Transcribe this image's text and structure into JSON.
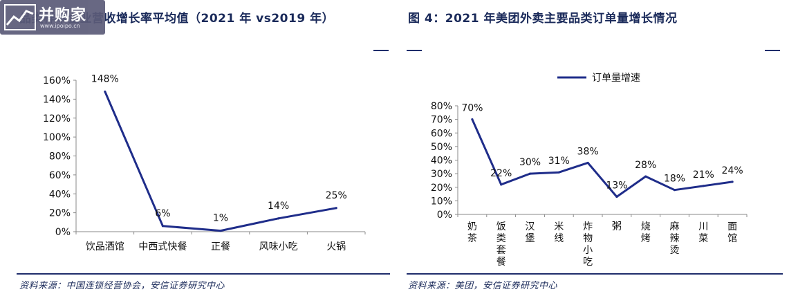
{
  "watermark": {
    "text": "并购家",
    "url": "www.ipoipo.cn"
  },
  "left": {
    "title": "品类样本企业营收增长率平均值（2021 年 vs2019 年）",
    "source": "资料来源：中国连锁经营协会，安信证券研究中心"
  },
  "right": {
    "title": "图 4：2021 年美团外卖主要品类订单量增长情况",
    "source": "资料来源：美团，安信证券研究中心"
  },
  "chart_data": [
    {
      "type": "line",
      "title": "品类样本企业营收增长率平均值（2021 年 vs2019 年）",
      "categories": [
        "饮品酒馆",
        "中西式快餐",
        "正餐",
        "风味小吃",
        "火锅"
      ],
      "series": [
        {
          "values": [
            148,
            6,
            1,
            14,
            25
          ]
        }
      ],
      "data_labels": [
        "148%",
        "6%",
        "1%",
        "14%",
        "25%"
      ],
      "yticks": [
        "0%",
        "20%",
        "40%",
        "60%",
        "80%",
        "100%",
        "120%",
        "140%",
        "160%"
      ],
      "ylim": [
        0,
        160
      ],
      "grid": false,
      "color": "#1f2d8a"
    },
    {
      "type": "line",
      "title": "2021 年美团外卖主要品类订单量增长情况",
      "categories": [
        "奶茶",
        "饭类套餐",
        "汉堡",
        "米线",
        "炸物小吃",
        "粥",
        "烧烤",
        "麻辣烫",
        "川菜",
        "面馆"
      ],
      "series": [
        {
          "name": "订单量增速",
          "values": [
            70,
            22,
            30,
            31,
            38,
            13,
            28,
            18,
            21,
            24
          ]
        }
      ],
      "data_labels": [
        "70%",
        "22%",
        "30%",
        "31%",
        "38%",
        "13%",
        "28%",
        "18%",
        "21%",
        "24%"
      ],
      "yticks": [
        "0%",
        "10%",
        "20%",
        "30%",
        "40%",
        "50%",
        "60%",
        "70%",
        "80%"
      ],
      "ylim": [
        0,
        80
      ],
      "legend": "top-center",
      "grid": false,
      "color": "#1f2d8a"
    }
  ]
}
